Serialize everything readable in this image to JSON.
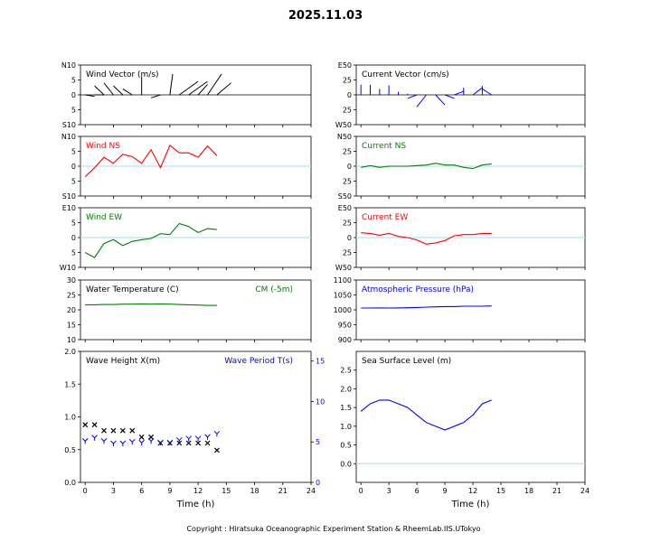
{
  "page": {
    "title": "2025.11.03",
    "copyright": "Copyright : Hiratsuka Oceanographic Experiment Station & RheemLab.IIS.UTokyo"
  },
  "colors": {
    "black": "#000000",
    "red": "#ff0000",
    "green": "#008000",
    "blue": "#0000ff",
    "zero_line": "#b0e8ee"
  },
  "chart_data": [
    {
      "id": "wind-vector",
      "type": "line",
      "title": "Wind Vector (m/s)",
      "title_color": "#000000",
      "xlim": [
        -0.5,
        24
      ],
      "ylim": [
        -10,
        10
      ],
      "yticks": [
        10,
        5,
        0,
        5,
        10
      ],
      "ytick_labels": [
        "N10",
        "5",
        "0",
        "5",
        "S10"
      ],
      "x": [
        0,
        1,
        2,
        3,
        4,
        5,
        6,
        7,
        8,
        9,
        10,
        11,
        12,
        13,
        14
      ],
      "u": [
        1,
        1,
        -1,
        -1,
        -1,
        -1,
        0,
        0,
        -1,
        0.3,
        2,
        2,
        1,
        1.5,
        1.5
      ],
      "v": [
        -0.5,
        0,
        3,
        4,
        3,
        2,
        6,
        0,
        -1,
        7,
        4.5,
        4.5,
        3.5,
        7,
        4
      ],
      "series": [
        {
          "name": "",
          "color": "#000000"
        }
      ]
    },
    {
      "id": "current-vector",
      "type": "line",
      "title": "Current Vector (cm/s)",
      "title_color": "#000000",
      "xlim": [
        -0.5,
        24
      ],
      "ylim": [
        -50,
        50
      ],
      "yticks": [
        50,
        25,
        0,
        25,
        50
      ],
      "ytick_labels": [
        "E50",
        "25",
        "0",
        "25",
        "W50"
      ],
      "x": [
        0,
        1,
        2,
        3,
        4,
        5,
        6,
        7,
        8,
        9,
        10,
        11,
        12,
        13,
        14
      ],
      "u": [
        0,
        0,
        0,
        0,
        0,
        0,
        -1,
        -1,
        1,
        1,
        1,
        0,
        1,
        0,
        -1
      ],
      "v": [
        17,
        17,
        10,
        16,
        5,
        2,
        -6,
        -20,
        -17,
        -6,
        6,
        12,
        12,
        15,
        10
      ],
      "series": [
        {
          "name": "",
          "color": "#0000ff"
        }
      ]
    },
    {
      "id": "wind-ns",
      "type": "line",
      "title": "Wind NS",
      "title_color": "#ff0000",
      "xlim": [
        -0.5,
        24
      ],
      "ylim": [
        -10,
        10
      ],
      "yticks": [
        10,
        5,
        0,
        5,
        10
      ],
      "ytick_labels": [
        "N10",
        "5",
        "0",
        "5",
        "S10"
      ],
      "x": [
        0,
        1,
        2,
        3,
        4,
        5,
        6,
        7,
        8,
        9,
        10,
        11,
        12,
        13,
        14
      ],
      "series": [
        {
          "name": "",
          "color": "#ff0000",
          "values": [
            -3.5,
            -0.5,
            3,
            1,
            4,
            3.2,
            1,
            5.5,
            -0.5,
            7,
            4.5,
            4.5,
            3,
            6.8,
            3.5
          ]
        }
      ]
    },
    {
      "id": "current-ns",
      "type": "line",
      "title": "Current NS",
      "title_color": "#008000",
      "xlim": [
        -0.5,
        24
      ],
      "ylim": [
        -50,
        50
      ],
      "yticks": [
        50,
        25,
        0,
        25,
        50
      ],
      "ytick_labels": [
        "N50",
        "25",
        "0",
        "25",
        "S50"
      ],
      "x": [
        0,
        1,
        2,
        3,
        4,
        5,
        6,
        7,
        8,
        9,
        10,
        11,
        12,
        13,
        14
      ],
      "series": [
        {
          "name": "",
          "color": "#008000",
          "values": [
            -2,
            1,
            -2,
            0,
            0,
            0,
            1,
            2,
            5,
            2,
            2,
            -2,
            -4,
            2,
            4
          ]
        }
      ]
    },
    {
      "id": "wind-ew",
      "type": "line",
      "title": "Wind EW",
      "title_color": "#008000",
      "xlim": [
        -0.5,
        24
      ],
      "ylim": [
        -10,
        10
      ],
      "yticks": [
        10,
        5,
        0,
        5,
        10
      ],
      "ytick_labels": [
        "E10",
        "5",
        "0",
        "5",
        "W10"
      ],
      "x": [
        0,
        1,
        2,
        3,
        4,
        5,
        6,
        7,
        8,
        9,
        10,
        11,
        12,
        13,
        14
      ],
      "series": [
        {
          "name": "",
          "color": "#008000",
          "values": [
            -5,
            -6.7,
            -2,
            -0.7,
            -2.7,
            -1.3,
            -0.7,
            -0.3,
            1.3,
            1,
            4.7,
            3.7,
            1.7,
            3,
            2.7
          ]
        }
      ]
    },
    {
      "id": "current-ew",
      "type": "line",
      "title": "Current EW",
      "title_color": "#ff0000",
      "xlim": [
        -0.5,
        24
      ],
      "ylim": [
        -50,
        50
      ],
      "yticks": [
        50,
        25,
        0,
        25,
        50
      ],
      "ytick_labels": [
        "E50",
        "25",
        "0",
        "25",
        "W50"
      ],
      "x": [
        0,
        1,
        2,
        3,
        4,
        5,
        6,
        7,
        8,
        9,
        10,
        11,
        12,
        13,
        14
      ],
      "series": [
        {
          "name": "",
          "color": "#ff0000",
          "values": [
            8,
            7,
            4,
            7,
            2,
            0,
            -4,
            -11,
            -9,
            -5,
            3,
            5,
            5,
            7,
            7
          ]
        }
      ]
    },
    {
      "id": "water-temperature",
      "type": "line",
      "title": "Water Temperature (C)",
      "title_color": "#000000",
      "subtitle": "CM (-5m)",
      "subtitle_color": "#008000",
      "xlim": [
        -0.5,
        24
      ],
      "ylim": [
        10,
        30
      ],
      "yticks": [
        30,
        25,
        20,
        15,
        10
      ],
      "ytick_labels": [
        "30",
        "25",
        "20",
        "15",
        "10"
      ],
      "x": [
        0,
        1,
        2,
        3,
        4,
        5,
        6,
        7,
        8,
        9,
        10,
        11,
        12,
        13,
        14
      ],
      "series": [
        {
          "name": "",
          "color": "#008000",
          "values": [
            21.7,
            21.7,
            21.8,
            21.8,
            21.9,
            21.9,
            22,
            21.9,
            22,
            21.9,
            21.8,
            21.7,
            21.6,
            21.5,
            21.5
          ]
        }
      ]
    },
    {
      "id": "atmospheric-pressure",
      "type": "line",
      "title": "Atmospheric Pressure (hPa)",
      "title_color": "#0000ff",
      "xlim": [
        -0.5,
        24
      ],
      "ylim": [
        900,
        1100
      ],
      "yticks": [
        1100,
        1050,
        1000,
        950,
        900
      ],
      "ytick_labels": [
        "1100",
        "1050",
        "1000",
        "950",
        "900"
      ],
      "x": [
        0,
        1,
        2,
        3,
        4,
        5,
        6,
        7,
        8,
        9,
        10,
        11,
        12,
        13,
        14
      ],
      "series": [
        {
          "name": "",
          "color": "#0000ff",
          "values": [
            1006,
            1006,
            1006.5,
            1006,
            1006.5,
            1007,
            1008,
            1009,
            1010,
            1011,
            1011,
            1012,
            1012,
            1012,
            1013
          ]
        }
      ]
    },
    {
      "id": "wave",
      "type": "scatter",
      "title": "Wave Height X(m)",
      "title_color": "#000000",
      "subtitle": "Wave Period T(s)",
      "subtitle_color": "#0000ff",
      "xlim": [
        -0.5,
        24
      ],
      "ylim": [
        0,
        2
      ],
      "y2lim": [
        0,
        16.2
      ],
      "yticks": [
        2.0,
        1.5,
        1.0,
        0.5,
        0.0
      ],
      "ytick_labels": [
        "2.0",
        "1.5",
        "1.0",
        "0.5",
        "0.0"
      ],
      "y2ticks": [
        15,
        10,
        5,
        0
      ],
      "y2tick_labels": [
        "15",
        "10",
        "5",
        "0"
      ],
      "xticks": [
        0,
        3,
        6,
        9,
        12,
        15,
        18,
        21,
        24
      ],
      "xtick_labels": [
        "0",
        "3",
        "6",
        "9",
        "12",
        "15",
        "18",
        "21",
        "24"
      ],
      "xlabel": "Time (h)",
      "x": [
        0,
        1,
        2,
        3,
        4,
        5,
        6,
        7,
        8,
        9,
        10,
        11,
        12,
        13,
        14
      ],
      "series": [
        {
          "name": "Wave Height X(m)",
          "marker": "x",
          "color": "#000000",
          "values": [
            0.88,
            0.88,
            0.79,
            0.79,
            0.79,
            0.79,
            0.69,
            0.69,
            0.6,
            0.6,
            0.6,
            0.6,
            0.6,
            0.6,
            0.49
          ]
        },
        {
          "name": "Wave Period T(s)",
          "marker": "y",
          "color": "#0000ff",
          "values": [
            5.1,
            5.5,
            5.1,
            4.8,
            4.8,
            5.0,
            4.9,
            5.1,
            4.9,
            4.9,
            5.2,
            5.4,
            5.4,
            5.6,
            6.0
          ]
        }
      ]
    },
    {
      "id": "sea-surface-level",
      "type": "line",
      "title": "Sea Surface Level (m)",
      "title_color": "#000000",
      "xlim": [
        -0.5,
        24
      ],
      "ylim": [
        -0.5,
        3.0
      ],
      "yticks": [
        2.5,
        2.0,
        1.5,
        1.0,
        0.5,
        0.0
      ],
      "ytick_labels": [
        "2.5",
        "2.0",
        "1.5",
        "1.0",
        "0.5",
        "0.0"
      ],
      "xticks": [
        0,
        3,
        6,
        9,
        12,
        15,
        18,
        21,
        24
      ],
      "xtick_labels": [
        "0",
        "3",
        "6",
        "9",
        "12",
        "15",
        "18",
        "21",
        "24"
      ],
      "xlabel": "Time (h)",
      "x": [
        0,
        1,
        2,
        3,
        4,
        5,
        6,
        7,
        8,
        9,
        10,
        11,
        12,
        13,
        14
      ],
      "series": [
        {
          "name": "",
          "color": "#0000ff",
          "values": [
            1.4,
            1.6,
            1.7,
            1.7,
            1.6,
            1.5,
            1.3,
            1.1,
            1.0,
            0.9,
            1.0,
            1.1,
            1.3,
            1.6,
            1.7
          ]
        }
      ]
    }
  ]
}
